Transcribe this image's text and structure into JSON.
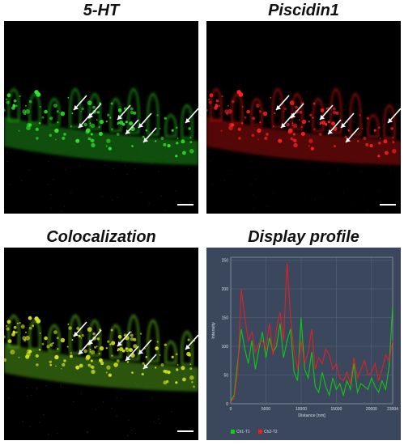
{
  "panels": {
    "p1": {
      "title": "5-HT",
      "color": "#2ee62a",
      "glow": "#1a8f17"
    },
    "p2": {
      "title": "Piscidin1",
      "color": "#ff2020",
      "glow": "#9a0c0c"
    },
    "p3": {
      "title": "Colocalization",
      "color": "#d6e51d",
      "glow": "#4f9a14"
    },
    "p4": {
      "title": "Display profile"
    }
  },
  "profile_colors": {
    "bg": "#3a475c",
    "grid": "#5a677c",
    "ch1": "#10d010",
    "ch2": "#ff1a1a"
  },
  "chart_data": {
    "type": "line",
    "xlabel": "Distance [nm]",
    "ylabel": "Intensity",
    "xlim": [
      0,
      23004
    ],
    "ylim": [
      0,
      255
    ],
    "x_ticks": [
      "0",
      "5000",
      "10000",
      "15000",
      "20000",
      "23004"
    ],
    "y_ticks": [
      "0",
      "50",
      "100",
      "150",
      "200",
      "250"
    ],
    "series": [
      {
        "name": "Ch1-T1",
        "color": "#10d010",
        "x": [
          0,
          500,
          1000,
          1500,
          2000,
          2500,
          3000,
          3500,
          4000,
          4500,
          5000,
          5500,
          6000,
          6500,
          7000,
          7500,
          8000,
          8500,
          9000,
          9500,
          10000,
          10500,
          11000,
          11500,
          12000,
          12500,
          13000,
          13500,
          14000,
          14500,
          15000,
          15500,
          16000,
          16500,
          17000,
          17500,
          18000,
          18500,
          19000,
          19500,
          20000,
          20500,
          21000,
          21500,
          22000,
          22500,
          23004
        ],
        "values": [
          5,
          15,
          75,
          130,
          95,
          70,
          110,
          60,
          95,
          125,
          80,
          115,
          90,
          100,
          140,
          80,
          110,
          130,
          55,
          40,
          150,
          60,
          45,
          90,
          30,
          20,
          55,
          30,
          15,
          45,
          25,
          35,
          15,
          40,
          25,
          70,
          20,
          35,
          30,
          25,
          45,
          30,
          20,
          40,
          25,
          65,
          170
        ]
      },
      {
        "name": "Ch2-T2",
        "color": "#ff1a1a",
        "x": [
          0,
          500,
          1000,
          1500,
          2000,
          2500,
          3000,
          3500,
          4000,
          4500,
          5000,
          5500,
          6000,
          6500,
          7000,
          7500,
          8000,
          8500,
          9000,
          9500,
          10000,
          10500,
          11000,
          11500,
          12000,
          12500,
          13000,
          13500,
          14000,
          14500,
          15000,
          15500,
          16000,
          16500,
          17000,
          17500,
          18000,
          18500,
          19000,
          19500,
          20000,
          20500,
          21000,
          21500,
          22000,
          22500,
          23004
        ],
        "values": [
          3,
          10,
          60,
          200,
          150,
          110,
          125,
          90,
          105,
          110,
          95,
          140,
          85,
          130,
          160,
          110,
          245,
          150,
          90,
          60,
          110,
          70,
          90,
          130,
          60,
          80,
          70,
          95,
          85,
          60,
          70,
          45,
          40,
          55,
          35,
          80,
          45,
          60,
          75,
          50,
          55,
          70,
          40,
          60,
          85,
          75,
          110
        ]
      }
    ]
  }
}
